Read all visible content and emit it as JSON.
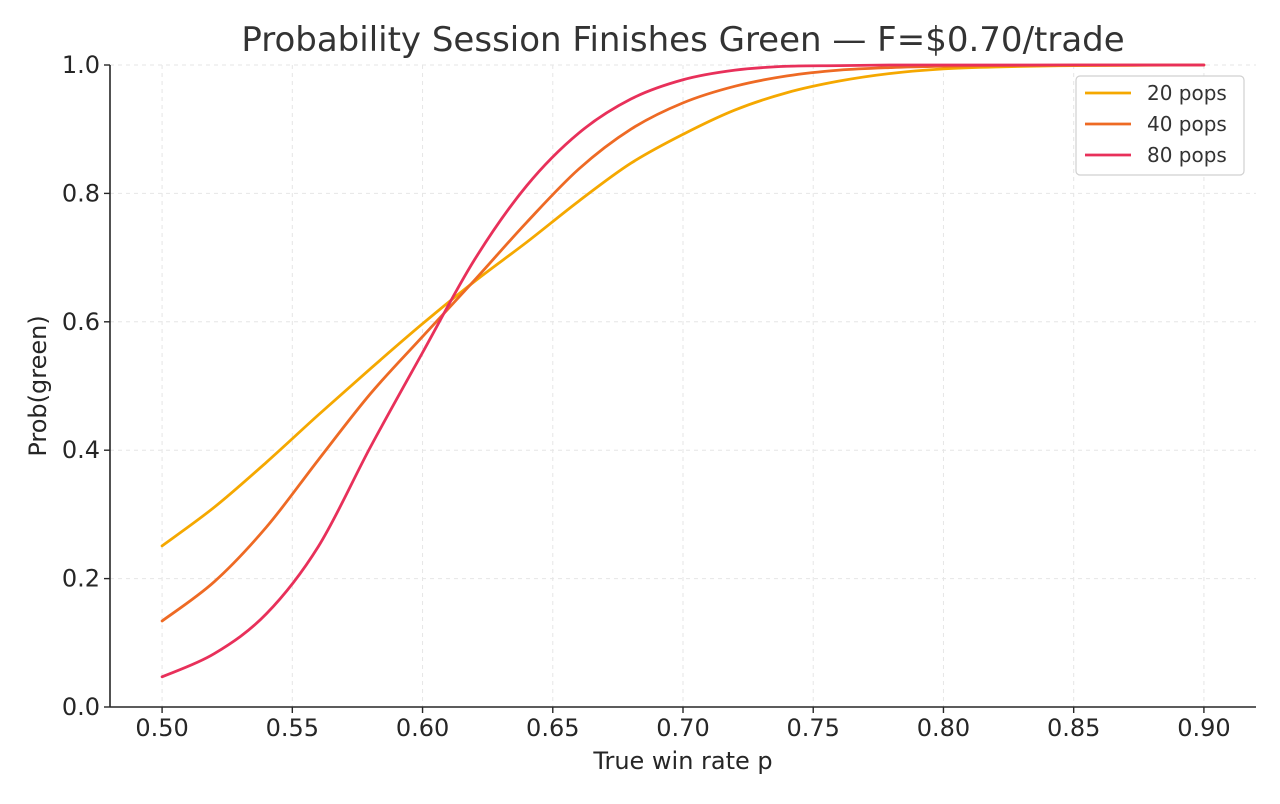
{
  "chart_data": {
    "type": "line",
    "title": "Probability Session Finishes Green — F=$0.70/trade",
    "xlabel": "True win rate p",
    "ylabel": "Prob(green)",
    "xlim": [
      0.48,
      0.92
    ],
    "ylim": [
      0.0,
      1.0
    ],
    "x_ticks": [
      "0.50",
      "0.55",
      "0.60",
      "0.65",
      "0.70",
      "0.75",
      "0.80",
      "0.85",
      "0.90"
    ],
    "y_ticks": [
      "0.0",
      "0.2",
      "0.4",
      "0.6",
      "0.8",
      "1.0"
    ],
    "grid": true,
    "legend_position": "top-right",
    "x": [
      0.5,
      0.52,
      0.54,
      0.56,
      0.58,
      0.6,
      0.62,
      0.64,
      0.66,
      0.68,
      0.7,
      0.72,
      0.74,
      0.76,
      0.78,
      0.8,
      0.82,
      0.85,
      0.9
    ],
    "series": [
      {
        "name": "20 pops",
        "color": "#f5a800",
        "values": [
          0.251,
          0.311,
          0.381,
          0.455,
          0.527,
          0.597,
          0.663,
          0.724,
          0.788,
          0.847,
          0.892,
          0.93,
          0.957,
          0.975,
          0.987,
          0.994,
          0.997,
          0.999,
          1.0
        ]
      },
      {
        "name": "40 pops",
        "color": "#ee6a24",
        "values": [
          0.134,
          0.195,
          0.28,
          0.385,
          0.488,
          0.577,
          0.665,
          0.755,
          0.838,
          0.9,
          0.941,
          0.967,
          0.983,
          0.992,
          0.996,
          0.998,
          0.999,
          1.0,
          1.0
        ]
      },
      {
        "name": "80 pops",
        "color": "#e8305a",
        "values": [
          0.047,
          0.083,
          0.145,
          0.25,
          0.405,
          0.552,
          0.697,
          0.812,
          0.894,
          0.947,
          0.977,
          0.992,
          0.998,
          0.999,
          1.0,
          1.0,
          1.0,
          1.0,
          1.0
        ]
      }
    ]
  }
}
